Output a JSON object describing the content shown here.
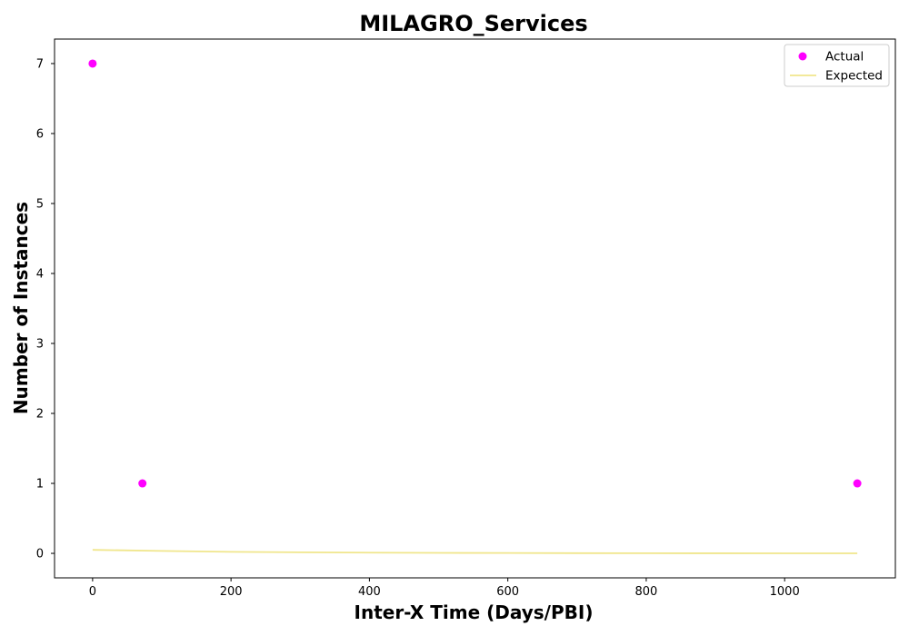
{
  "chart_data": {
    "type": "scatter",
    "title": "MILAGRO_Services",
    "xlabel": "Inter-X Time (Days/PBI)",
    "ylabel": "Number of Instances",
    "xlim": [
      -55,
      1160
    ],
    "ylim": [
      -0.35,
      7.35
    ],
    "xticks": [
      0,
      200,
      400,
      600,
      800,
      1000
    ],
    "yticks": [
      0,
      1,
      2,
      3,
      4,
      5,
      6,
      7
    ],
    "grid": false,
    "legend_position": "top-right",
    "series": [
      {
        "name": "Actual",
        "kind": "scatter",
        "color": "#ff00ff",
        "points": [
          [
            0,
            7
          ],
          [
            72,
            1
          ],
          [
            1105,
            1
          ]
        ]
      },
      {
        "name": "Expected",
        "kind": "line",
        "color": "#f0e68c",
        "points": [
          [
            0,
            0.05
          ],
          [
            100,
            0.035
          ],
          [
            200,
            0.022
          ],
          [
            300,
            0.015
          ],
          [
            400,
            0.01
          ],
          [
            500,
            0.007
          ],
          [
            600,
            0.005
          ],
          [
            700,
            0.003
          ],
          [
            800,
            0.002
          ],
          [
            900,
            0.0015
          ],
          [
            1000,
            0.001
          ],
          [
            1105,
            0.0005
          ]
        ]
      }
    ]
  }
}
